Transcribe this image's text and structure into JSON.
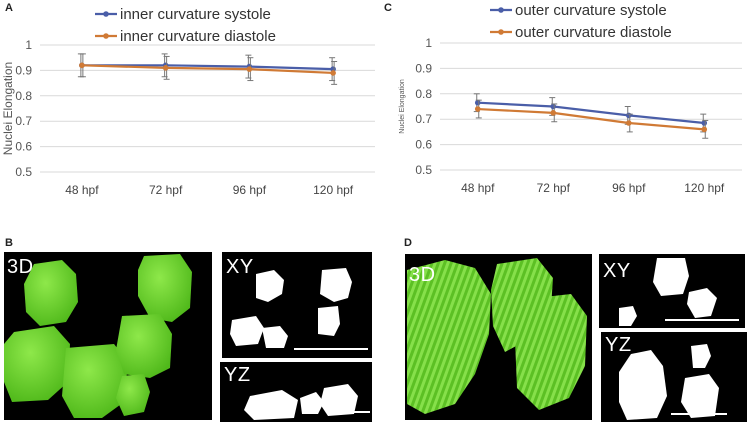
{
  "panels": {
    "A": "A",
    "B": "B",
    "C": "C",
    "D": "D"
  },
  "chart_data": [
    {
      "type": "line",
      "panel": "A",
      "categories": [
        "48 hpf",
        "72 hpf",
        "96 hpf",
        "120 hpf"
      ],
      "series": [
        {
          "name": "inner curvature systole",
          "color": "#4a5ea8",
          "values": [
            0.92,
            0.92,
            0.915,
            0.905
          ],
          "error": [
            0.045,
            0.045,
            0.045,
            0.045
          ]
        },
        {
          "name": "inner curvature diastole",
          "color": "#d07a35",
          "values": [
            0.92,
            0.91,
            0.905,
            0.89
          ],
          "error": [
            0.045,
            0.045,
            0.045,
            0.045
          ]
        }
      ],
      "ylabel": "Nuclei Elongation",
      "ylim": [
        0.5,
        1
      ],
      "yticks": [
        "0.5",
        "0.6",
        "0.7",
        "0.8",
        "0.9",
        "1"
      ],
      "grid": true,
      "legend": "top"
    },
    {
      "type": "line",
      "panel": "C",
      "categories": [
        "48 hpf",
        "72 hpf",
        "96 hpf",
        "120 hpf"
      ],
      "series": [
        {
          "name": "outer curvature systole",
          "color": "#4a5ea8",
          "values": [
            0.765,
            0.75,
            0.715,
            0.685
          ],
          "error": [
            0.035,
            0.035,
            0.035,
            0.035
          ]
        },
        {
          "name": "outer curvature diastole",
          "color": "#d07a35",
          "values": [
            0.74,
            0.725,
            0.685,
            0.66
          ],
          "error": [
            0.035,
            0.035,
            0.035,
            0.035
          ]
        }
      ],
      "ylabel": "Nuclei Elongation",
      "ylim": [
        0.5,
        1
      ],
      "yticks": [
        "0.5",
        "0.6",
        "0.7",
        "0.8",
        "0.9",
        "1"
      ],
      "grid": true,
      "legend": "top"
    }
  ],
  "images": {
    "B_3d": "3D",
    "B_xy": "XY",
    "B_yz": "YZ",
    "D_3d": "3D",
    "D_xy": "XY",
    "D_yz": "YZ"
  },
  "colors": {
    "nucleus_green": "#6fd62a",
    "background": "#000000",
    "mask": "#ffffff"
  }
}
